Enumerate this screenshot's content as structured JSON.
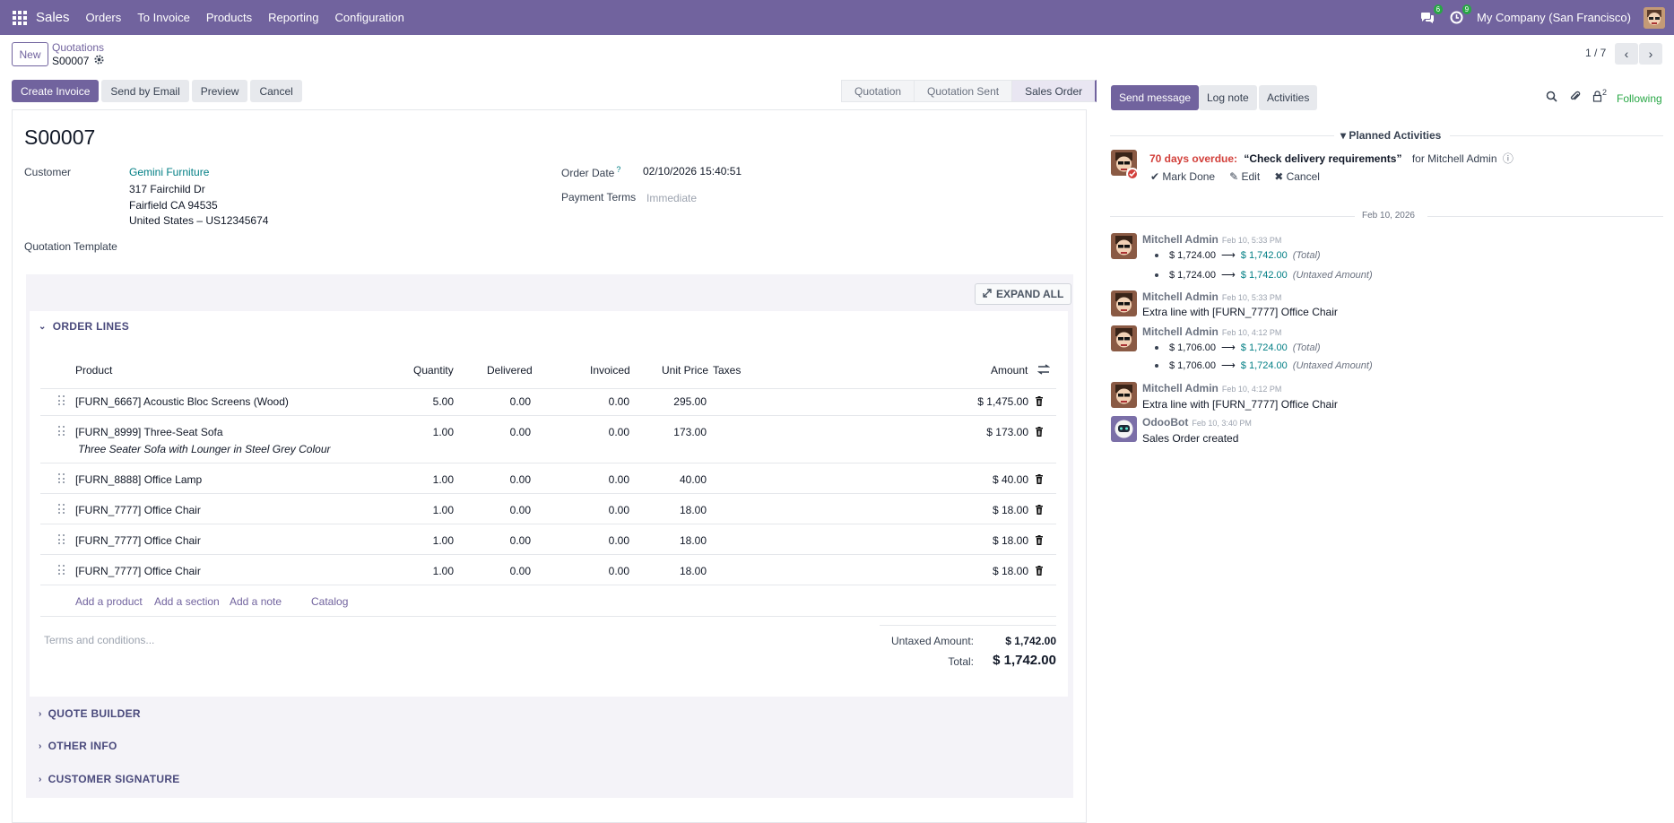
{
  "navbar": {
    "app_name": "Sales",
    "menu": [
      "Orders",
      "To Invoice",
      "Products",
      "Reporting",
      "Configuration"
    ],
    "messages_badge": "6",
    "activities_badge": "9",
    "company": "My Company (San Francisco)"
  },
  "control": {
    "new_label": "New",
    "breadcrumb_parent": "Quotations",
    "breadcrumb_current": "S00007",
    "pager": "1 / 7"
  },
  "actions": {
    "create_invoice": "Create Invoice",
    "send_by_email": "Send by Email",
    "preview": "Preview",
    "cancel": "Cancel"
  },
  "status": {
    "steps": [
      "Quotation",
      "Quotation Sent",
      "Sales Order"
    ],
    "active": "Sales Order"
  },
  "form": {
    "name": "S00007",
    "customer_label": "Customer",
    "customer_name": "Gemini Furniture",
    "address_line1": "317 Fairchild Dr",
    "address_line2": "Fairfield CA 94535",
    "address_line3": "United States – US12345674",
    "quotation_template_label": "Quotation Template",
    "order_date_label": "Order Date",
    "order_date_help": "?",
    "order_date": "02/10/2026 15:40:51",
    "payment_terms_label": "Payment Terms",
    "payment_terms_placeholder": "Immediate"
  },
  "lines": {
    "expand_all": "EXPAND ALL",
    "section_title": "ORDER LINES",
    "headers": {
      "product": "Product",
      "quantity": "Quantity",
      "delivered": "Delivered",
      "invoiced": "Invoiced",
      "unit_price": "Unit Price",
      "taxes": "Taxes",
      "amount": "Amount"
    },
    "rows": [
      {
        "product": "[FURN_6667] Acoustic Bloc Screens (Wood)",
        "description": "",
        "quantity": "5.00",
        "delivered": "0.00",
        "invoiced": "0.00",
        "unit_price": "295.00",
        "amount": "$ 1,475.00"
      },
      {
        "product": "[FURN_8999] Three-Seat Sofa",
        "description": "Three Seater Sofa with Lounger in Steel Grey Colour",
        "quantity": "1.00",
        "delivered": "0.00",
        "invoiced": "0.00",
        "unit_price": "173.00",
        "amount": "$ 173.00"
      },
      {
        "product": "[FURN_8888] Office Lamp",
        "description": "",
        "quantity": "1.00",
        "delivered": "0.00",
        "invoiced": "0.00",
        "unit_price": "40.00",
        "amount": "$ 40.00"
      },
      {
        "product": "[FURN_7777] Office Chair",
        "description": "",
        "quantity": "1.00",
        "delivered": "0.00",
        "invoiced": "0.00",
        "unit_price": "18.00",
        "amount": "$ 18.00"
      },
      {
        "product": "[FURN_7777] Office Chair",
        "description": "",
        "quantity": "1.00",
        "delivered": "0.00",
        "invoiced": "0.00",
        "unit_price": "18.00",
        "amount": "$ 18.00"
      },
      {
        "product": "[FURN_7777] Office Chair",
        "description": "",
        "quantity": "1.00",
        "delivered": "0.00",
        "invoiced": "0.00",
        "unit_price": "18.00",
        "amount": "$ 18.00"
      }
    ],
    "add_product": "Add a product",
    "add_section": "Add a section",
    "add_note": "Add a note",
    "catalog": "Catalog",
    "terms_placeholder": "Terms and conditions...",
    "untaxed_label": "Untaxed Amount:",
    "untaxed_value": "$ 1,742.00",
    "total_label": "Total:",
    "total_value": "$ 1,742.00"
  },
  "sections": {
    "quote_builder": "QUOTE BUILDER",
    "other_info": "OTHER INFO",
    "customer_signature": "CUSTOMER SIGNATURE"
  },
  "chatter": {
    "send_message": "Send message",
    "log_note": "Log note",
    "activities": "Activities",
    "followers_count": "2",
    "following": "Following",
    "planned_activities": "Planned Activities",
    "activity": {
      "overdue": "70 days overdue:",
      "summary": "“Check delivery requirements”",
      "assigned": "for Mitchell Admin",
      "mark_done": "Mark Done",
      "edit": "Edit",
      "cancel": "Cancel"
    },
    "date_separator": "Feb 10, 2026",
    "messages": [
      {
        "author": "Mitchell Admin",
        "date": "Feb 10, 5:33 PM",
        "changes": [
          {
            "old": "$ 1,724.00",
            "new": "$ 1,742.00",
            "field": "(Total)"
          },
          {
            "old": "$ 1,724.00",
            "new": "$ 1,742.00",
            "field": "(Untaxed Amount)"
          }
        ]
      },
      {
        "author": "Mitchell Admin",
        "date": "Feb 10, 5:33 PM",
        "body": "Extra line with [FURN_7777] Office Chair"
      },
      {
        "author": "Mitchell Admin",
        "date": "Feb 10, 4:12 PM",
        "changes": [
          {
            "old": "$ 1,706.00",
            "new": "$ 1,724.00",
            "field": "(Total)"
          },
          {
            "old": "$ 1,706.00",
            "new": "$ 1,724.00",
            "field": "(Untaxed Amount)"
          }
        ]
      },
      {
        "author": "Mitchell Admin",
        "date": "Feb 10, 4:12 PM",
        "body": "Extra line with [FURN_7777] Office Chair"
      },
      {
        "author": "OdooBot",
        "date": "Feb 10, 3:40 PM",
        "body": "Sales Order created"
      }
    ]
  },
  "colors": {
    "brand": "#71639e",
    "link": "#017e84",
    "overdue": "#d23f3a",
    "success": "#28a745"
  }
}
